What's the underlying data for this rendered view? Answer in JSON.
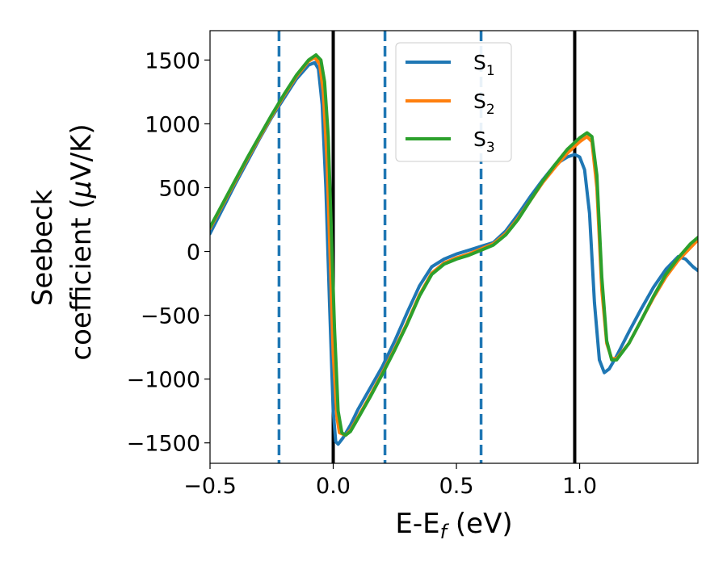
{
  "chart_data": {
    "type": "line",
    "title": "",
    "xlabel": {
      "main": "E-E",
      "sub": "f",
      "unit": " (eV)"
    },
    "ylabel": {
      "line1": "Seebeck",
      "line2_main": "coefficient  (",
      "line2_mu": "μ",
      "line2_unit": "V/K)"
    },
    "xlim": [
      -0.5,
      1.48
    ],
    "ylim": [
      -1660,
      1730
    ],
    "xticks": [
      -0.5,
      0.0,
      0.5,
      1.0
    ],
    "xtick_labels": [
      "−0.5",
      "0.0",
      "0.5",
      "1.0"
    ],
    "yticks": [
      -1500,
      -1000,
      -500,
      0,
      500,
      1000,
      1500
    ],
    "ytick_labels": [
      "−1500",
      "−1000",
      "−500",
      "0",
      "500",
      "1000",
      "1500"
    ],
    "legend_position": "top-center",
    "grid": false,
    "vlines_solid": [
      0.0,
      0.98
    ],
    "vlines_dashed": [
      -0.22,
      0.21,
      0.6
    ],
    "vline_solid_color": "#000000",
    "vline_dashed_color": "#1f77b4",
    "series": [
      {
        "name": "S",
        "sub": "1",
        "color": "#1f77b4",
        "x": [
          -0.5,
          -0.45,
          -0.4,
          -0.35,
          -0.3,
          -0.25,
          -0.2,
          -0.15,
          -0.1,
          -0.075,
          -0.06,
          -0.045,
          -0.03,
          -0.015,
          0.0,
          0.01,
          0.02,
          0.04,
          0.07,
          0.1,
          0.15,
          0.2,
          0.25,
          0.3,
          0.35,
          0.4,
          0.45,
          0.5,
          0.55,
          0.6,
          0.65,
          0.7,
          0.75,
          0.8,
          0.85,
          0.9,
          0.95,
          0.98,
          1.0,
          1.02,
          1.04,
          1.06,
          1.08,
          1.1,
          1.12,
          1.15,
          1.2,
          1.25,
          1.3,
          1.35,
          1.4,
          1.43,
          1.46,
          1.48
        ],
        "y": [
          140,
          330,
          520,
          700,
          880,
          1050,
          1200,
          1350,
          1460,
          1480,
          1430,
          1150,
          500,
          -400,
          -1250,
          -1490,
          -1510,
          -1460,
          -1360,
          -1240,
          -1070,
          -900,
          -700,
          -480,
          -270,
          -120,
          -60,
          -20,
          10,
          40,
          70,
          160,
          290,
          430,
          560,
          680,
          740,
          760,
          740,
          640,
          300,
          -400,
          -850,
          -950,
          -920,
          -820,
          -630,
          -450,
          -280,
          -140,
          -40,
          -60,
          -120,
          -150
        ]
      },
      {
        "name": "S",
        "sub": "2",
        "color": "#ff7f0e",
        "x": [
          -0.5,
          -0.45,
          -0.4,
          -0.35,
          -0.3,
          -0.25,
          -0.2,
          -0.15,
          -0.1,
          -0.075,
          -0.055,
          -0.04,
          -0.025,
          -0.01,
          0.0,
          0.015,
          0.025,
          0.05,
          0.07,
          0.1,
          0.15,
          0.2,
          0.25,
          0.3,
          0.35,
          0.4,
          0.45,
          0.5,
          0.55,
          0.6,
          0.65,
          0.7,
          0.75,
          0.8,
          0.85,
          0.9,
          0.95,
          1.0,
          1.03,
          1.05,
          1.07,
          1.09,
          1.11,
          1.13,
          1.15,
          1.2,
          1.25,
          1.3,
          1.35,
          1.4,
          1.45,
          1.48
        ],
        "y": [
          180,
          360,
          540,
          720,
          890,
          1060,
          1220,
          1370,
          1490,
          1520,
          1470,
          1250,
          700,
          -200,
          -800,
          -1300,
          -1420,
          -1440,
          -1400,
          -1300,
          -1130,
          -950,
          -760,
          -560,
          -340,
          -170,
          -90,
          -50,
          -20,
          20,
          60,
          140,
          260,
          400,
          540,
          660,
          770,
          860,
          900,
          860,
          500,
          -300,
          -720,
          -840,
          -840,
          -720,
          -540,
          -360,
          -200,
          -70,
          30,
          90
        ]
      },
      {
        "name": "S",
        "sub": "3",
        "color": "#2ca02c",
        "x": [
          -0.5,
          -0.45,
          -0.4,
          -0.35,
          -0.3,
          -0.25,
          -0.2,
          -0.15,
          -0.1,
          -0.07,
          -0.05,
          -0.035,
          -0.02,
          -0.005,
          0.005,
          0.02,
          0.035,
          0.05,
          0.07,
          0.1,
          0.15,
          0.2,
          0.25,
          0.3,
          0.35,
          0.4,
          0.45,
          0.5,
          0.55,
          0.6,
          0.65,
          0.7,
          0.75,
          0.8,
          0.85,
          0.9,
          0.95,
          1.0,
          1.03,
          1.05,
          1.07,
          1.09,
          1.11,
          1.13,
          1.15,
          1.2,
          1.25,
          1.3,
          1.35,
          1.4,
          1.45,
          1.48
        ],
        "y": [
          190,
          370,
          550,
          730,
          900,
          1070,
          1230,
          1380,
          1500,
          1540,
          1500,
          1330,
          900,
          0,
          -600,
          -1250,
          -1420,
          -1440,
          -1410,
          -1310,
          -1140,
          -960,
          -770,
          -570,
          -350,
          -180,
          -100,
          -60,
          -30,
          10,
          50,
          130,
          250,
          400,
          550,
          680,
          800,
          890,
          930,
          900,
          600,
          -200,
          -700,
          -850,
          -850,
          -720,
          -540,
          -350,
          -180,
          -50,
          60,
          110
        ]
      }
    ]
  }
}
